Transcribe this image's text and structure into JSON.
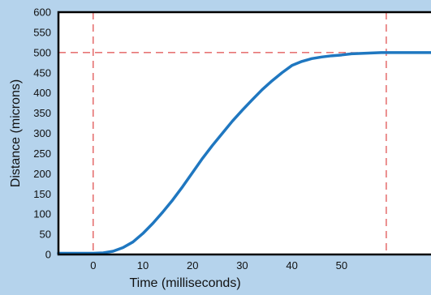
{
  "chart_data": {
    "type": "line",
    "title": "",
    "xlabel": "Time (milliseconds)",
    "ylabel": "Distance (microns)",
    "xlim": [
      -7,
      68
    ],
    "ylim": [
      0,
      600
    ],
    "x_ticks": [
      0,
      10,
      20,
      30,
      40,
      50
    ],
    "y_ticks": [
      0,
      50,
      100,
      150,
      200,
      250,
      300,
      350,
      400,
      450,
      500,
      550,
      600
    ],
    "grid": false,
    "legend": "none",
    "reference_lines": {
      "vertical_x": [
        0,
        59
      ],
      "horizontal_y": [
        500
      ]
    },
    "series": [
      {
        "x": [
          -7,
          -5,
          -3,
          -1,
          0,
          2,
          4,
          6,
          8,
          10,
          12,
          14,
          16,
          18,
          20,
          22,
          24,
          26,
          28,
          30,
          32,
          34,
          36,
          38,
          40,
          42,
          44,
          46,
          48,
          50,
          52,
          54,
          56,
          58,
          60,
          62,
          64,
          66,
          68
        ],
        "y": [
          3,
          3,
          3,
          3,
          3,
          4,
          8,
          17,
          31,
          52,
          77,
          105,
          135,
          168,
          203,
          238,
          270,
          300,
          330,
          357,
          383,
          408,
          430,
          450,
          468,
          478,
          485,
          489,
          492,
          494,
          497,
          498,
          499,
          500,
          500,
          500,
          500,
          500,
          500
        ],
        "color": "#1f77c0"
      }
    ],
    "colors": {
      "background": "#b5d3ec",
      "plot_background": "#ffffff",
      "line": "#1f77c0",
      "reference_lines": "#d62020",
      "axes": "#000000"
    }
  }
}
